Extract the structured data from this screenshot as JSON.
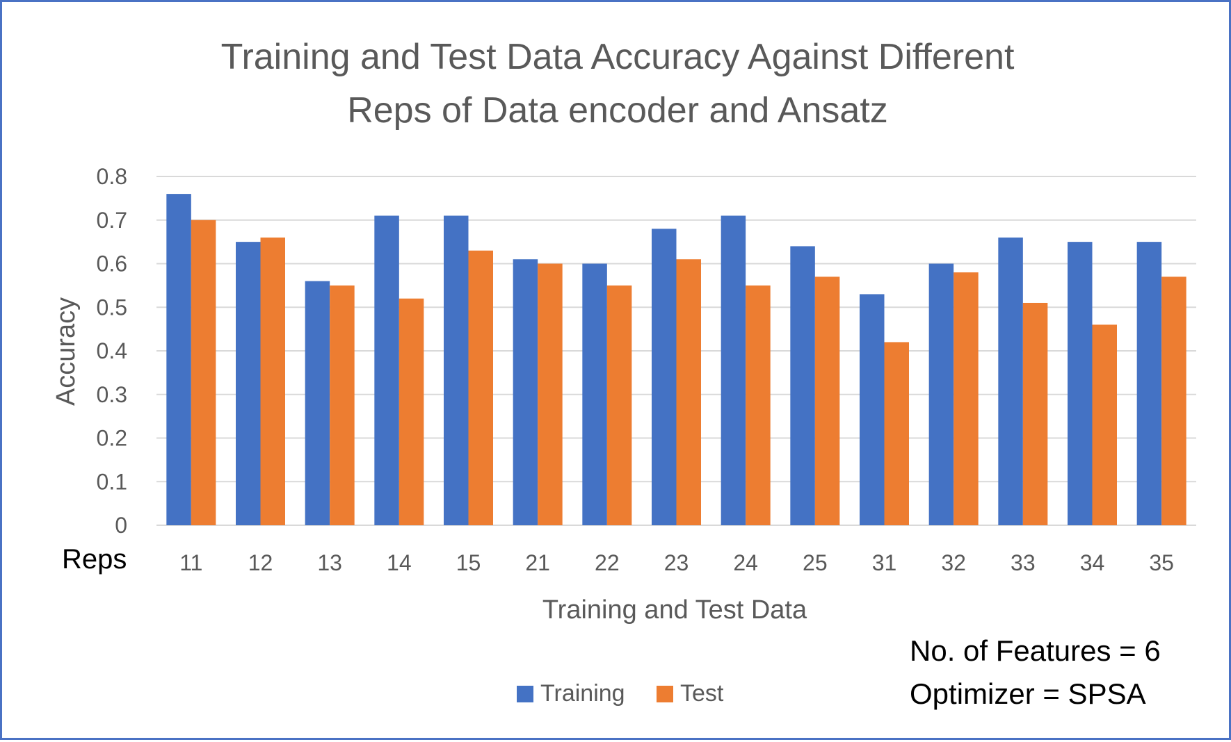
{
  "chart_data": {
    "type": "bar",
    "title_lines": [
      "Training and Test Data Accuracy Against Different",
      "Reps of Data encoder and Ansatz"
    ],
    "xlabel": "Training and Test Data",
    "ylabel": "Accuracy",
    "category_axis_label": "Reps",
    "categories": [
      "11",
      "12",
      "13",
      "14",
      "15",
      "21",
      "22",
      "23",
      "24",
      "25",
      "31",
      "32",
      "33",
      "34",
      "35"
    ],
    "ylim": [
      0,
      0.8
    ],
    "yticks": [
      "0",
      "0.1",
      "0.2",
      "0.3",
      "0.4",
      "0.5",
      "0.6",
      "0.7",
      "0.8"
    ],
    "grid": true,
    "legend_position": "bottom",
    "series": [
      {
        "name": "Training",
        "color": "#4472c4",
        "values": [
          0.76,
          0.65,
          0.56,
          0.71,
          0.71,
          0.61,
          0.6,
          0.68,
          0.71,
          0.64,
          0.53,
          0.6,
          0.66,
          0.65,
          0.65
        ]
      },
      {
        "name": "Test",
        "color": "#ed7d31",
        "values": [
          0.7,
          0.66,
          0.55,
          0.52,
          0.63,
          0.6,
          0.55,
          0.61,
          0.55,
          0.57,
          0.42,
          0.58,
          0.51,
          0.46,
          0.57
        ]
      }
    ],
    "annotations": [
      "No. of Features = 6",
      "Optimizer = SPSA"
    ]
  }
}
